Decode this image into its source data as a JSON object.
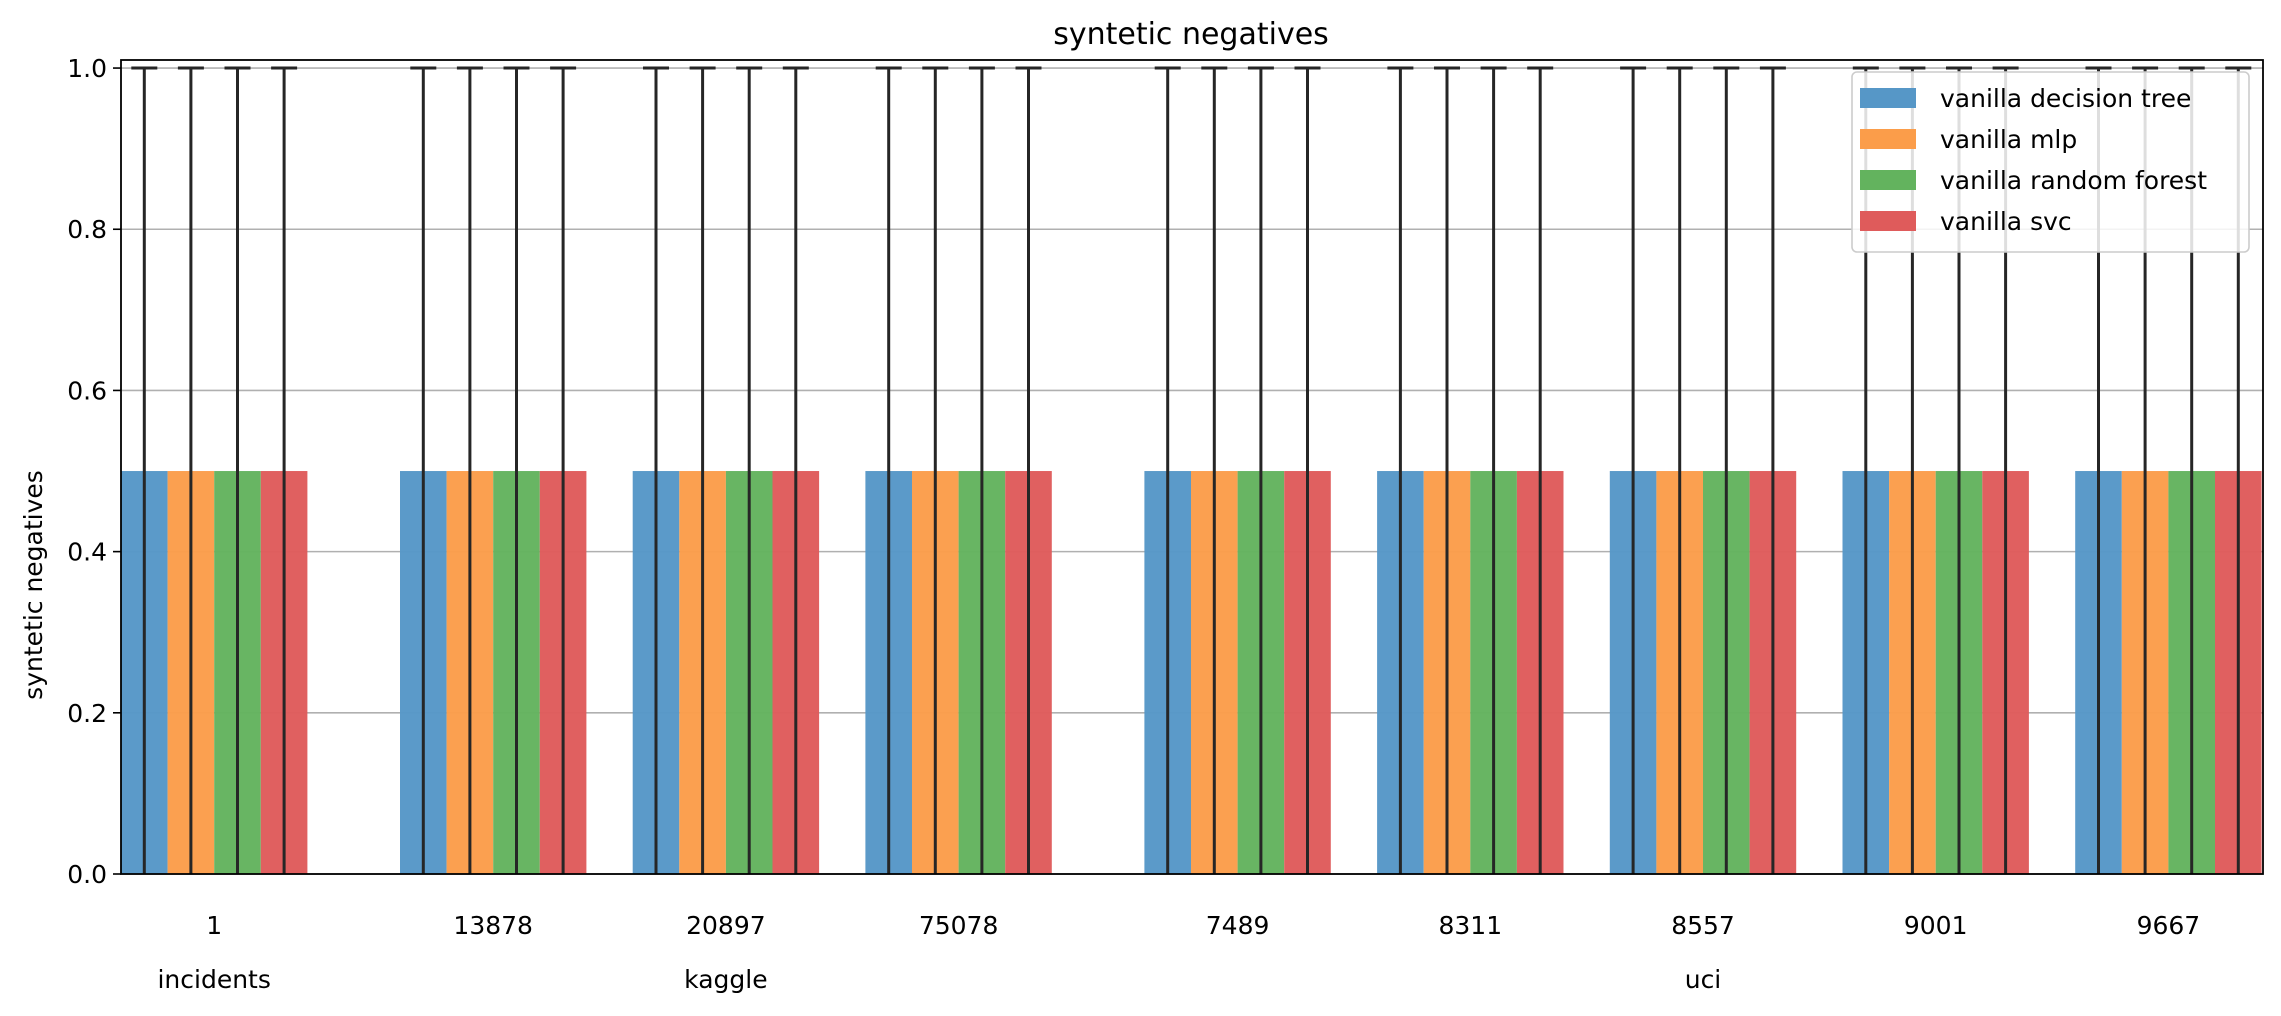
{
  "chart_data": {
    "type": "bar",
    "title": "syntetic negatives",
    "ylabel": "syntetic negatives",
    "xlabel": "",
    "ylim": [
      0,
      1.01
    ],
    "yticks": [
      "0.0",
      "0.2",
      "0.4",
      "0.6",
      "0.8",
      "1.0"
    ],
    "grid": "y",
    "legend_position": "top-right",
    "groups": [
      {
        "label": "incidents",
        "categories": [
          "1"
        ]
      },
      {
        "label": "kaggle",
        "categories": [
          "13878",
          "20897",
          "75078"
        ]
      },
      {
        "label": "uci",
        "categories": [
          "7489",
          "8311",
          "8557",
          "9001",
          "9667"
        ]
      }
    ],
    "categories": [
      "1",
      "13878",
      "20897",
      "75078",
      "7489",
      "8311",
      "8557",
      "9001",
      "9667"
    ],
    "series": [
      {
        "name": "vanilla decision tree",
        "color": "#5697c7",
        "values": [
          0.5,
          0.5,
          0.5,
          0.5,
          0.5,
          0.5,
          0.5,
          0.5,
          0.5
        ],
        "error_upper": [
          1.0,
          1.0,
          1.0,
          1.0,
          1.0,
          1.0,
          1.0,
          1.0,
          1.0
        ],
        "error_lower": [
          0.0,
          0.0,
          0.0,
          0.0,
          0.0,
          0.0,
          0.0,
          0.0,
          0.0
        ]
      },
      {
        "name": "vanilla mlp",
        "color": "#fb9d4a",
        "values": [
          0.5,
          0.5,
          0.5,
          0.5,
          0.5,
          0.5,
          0.5,
          0.5,
          0.5
        ],
        "error_upper": [
          1.0,
          1.0,
          1.0,
          1.0,
          1.0,
          1.0,
          1.0,
          1.0,
          1.0
        ],
        "error_lower": [
          0.0,
          0.0,
          0.0,
          0.0,
          0.0,
          0.0,
          0.0,
          0.0,
          0.0
        ]
      },
      {
        "name": "vanilla random forest",
        "color": "#63b35e",
        "values": [
          0.5,
          0.5,
          0.5,
          0.5,
          0.5,
          0.5,
          0.5,
          0.5,
          0.5
        ],
        "error_upper": [
          1.0,
          1.0,
          1.0,
          1.0,
          1.0,
          1.0,
          1.0,
          1.0,
          1.0
        ],
        "error_lower": [
          0.0,
          0.0,
          0.0,
          0.0,
          0.0,
          0.0,
          0.0,
          0.0,
          0.0
        ]
      },
      {
        "name": "vanilla svc",
        "color": "#df5b5b",
        "values": [
          0.5,
          0.5,
          0.5,
          0.5,
          0.5,
          0.5,
          0.5,
          0.5,
          0.5
        ],
        "error_upper": [
          1.0,
          1.0,
          1.0,
          1.0,
          1.0,
          1.0,
          1.0,
          1.0,
          1.0
        ],
        "error_lower": [
          0.0,
          0.0,
          0.0,
          0.0,
          0.0,
          0.0,
          0.0,
          0.0,
          0.0
        ]
      }
    ]
  }
}
